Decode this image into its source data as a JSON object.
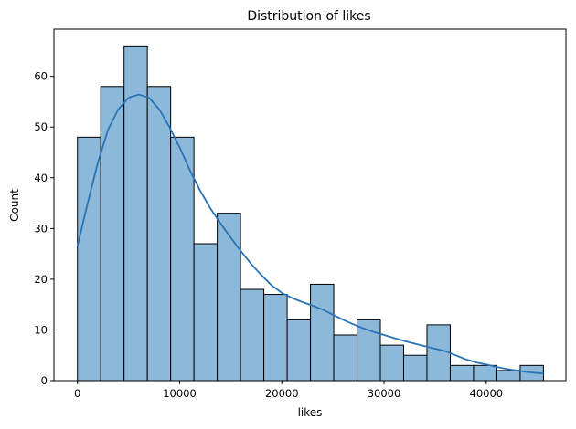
{
  "chart_data": {
    "type": "histogram",
    "title": "Distribution of likes",
    "xlabel": "likes",
    "ylabel": "Count",
    "xlim": [
      -2300,
      47800
    ],
    "ylim": [
      0,
      69.3
    ],
    "xticks": [
      0,
      10000,
      20000,
      30000,
      40000
    ],
    "xtick_labels": [
      "0",
      "10000",
      "20000",
      "30000",
      "40000"
    ],
    "yticks": [
      0,
      10,
      20,
      30,
      40,
      50,
      60
    ],
    "ytick_labels": [
      "0",
      "10",
      "20",
      "30",
      "40",
      "50",
      "60"
    ],
    "bin_edges": [
      0,
      2280,
      4560,
      6840,
      9120,
      11400,
      13680,
      15960,
      18240,
      20520,
      22800,
      25080,
      27360,
      29640,
      31920,
      34200,
      36480,
      38760,
      41040,
      43320,
      45600
    ],
    "counts": [
      48,
      58,
      66,
      58,
      48,
      27,
      33,
      18,
      17,
      12,
      19,
      9,
      12,
      7,
      5,
      11,
      3,
      3,
      2,
      3
    ],
    "bar_color": "#8cb8d9",
    "bar_edge_color": "#000000",
    "kde": {
      "color": "#2a74b5",
      "x": [
        0,
        1000,
        2000,
        3000,
        4000,
        5000,
        6000,
        7000,
        8000,
        9000,
        10000,
        11000,
        12000,
        13000,
        14000,
        15000,
        16000,
        17000,
        18000,
        19000,
        20000,
        21000,
        22000,
        23000,
        24000,
        25000,
        26000,
        27000,
        28000,
        29000,
        30000,
        31000,
        32000,
        33000,
        34000,
        35000,
        36000,
        37000,
        38000,
        39000,
        40000,
        41000,
        42000,
        43000,
        44000,
        45000,
        45600
      ],
      "y": [
        26.5,
        35,
        43,
        49.5,
        53.5,
        55.8,
        56.4,
        55.8,
        53.5,
        50,
        46,
        41.5,
        37.5,
        34,
        31,
        28.2,
        25.5,
        23,
        20.8,
        18.8,
        17.3,
        16.3,
        15.5,
        14.8,
        14,
        13,
        12,
        11.1,
        10.3,
        9.6,
        9,
        8.4,
        7.8,
        7.3,
        6.8,
        6.3,
        5.8,
        5,
        4.2,
        3.6,
        3.2,
        2.7,
        2.3,
        2,
        1.7,
        1.5,
        1.4
      ]
    }
  }
}
